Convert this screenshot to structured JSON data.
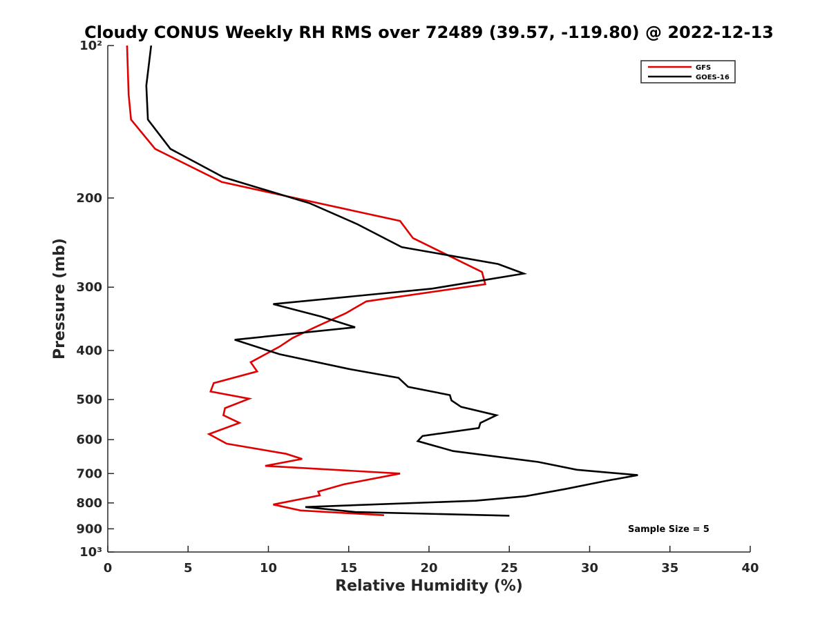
{
  "chart_data": {
    "type": "line",
    "title": "Cloudy CONUS Weekly RH RMS over 72489 (39.57, -119.80) @ 2022-12-13",
    "xlabel": "Relative Humidity (%)",
    "ylabel": "Pressure (mb)",
    "xlim": [
      0,
      40
    ],
    "ylim": [
      100,
      1000
    ],
    "y_scale": "log",
    "y_reversed": true,
    "x_ticks": [
      0,
      5,
      10,
      15,
      20,
      25,
      30,
      35,
      40
    ],
    "y_ticks": [
      100,
      200,
      300,
      400,
      500,
      600,
      700,
      800,
      900,
      1000
    ],
    "y_tick_labels": [
      "10²",
      "200",
      "300",
      "400",
      "500",
      "600",
      "700",
      "800",
      "900",
      "10³"
    ],
    "grid": false,
    "legend_position": "top-right",
    "annotation": "Sample Size = 5",
    "series": [
      {
        "name": "GFS",
        "color": "#e00000",
        "points": [
          [
            1.2,
            100
          ],
          [
            1.3,
            125
          ],
          [
            1.45,
            140
          ],
          [
            2.95,
            160
          ],
          [
            7.1,
            186
          ],
          [
            18.2,
            222
          ],
          [
            19.0,
            240
          ],
          [
            23.3,
            280
          ],
          [
            23.5,
            296
          ],
          [
            16.1,
            320
          ],
          [
            14.8,
            338
          ],
          [
            12.9,
            360
          ],
          [
            11.5,
            378
          ],
          [
            10.7,
            393
          ],
          [
            8.9,
            422
          ],
          [
            9.3,
            440
          ],
          [
            6.6,
            464
          ],
          [
            6.4,
            482
          ],
          [
            8.8,
            498
          ],
          [
            7.3,
            520
          ],
          [
            7.2,
            537
          ],
          [
            8.2,
            556
          ],
          [
            6.3,
            585
          ],
          [
            7.4,
            611
          ],
          [
            11.1,
            640
          ],
          [
            12.1,
            655
          ],
          [
            9.8,
            676
          ],
          [
            18.2,
            700
          ],
          [
            14.7,
            735
          ],
          [
            13.1,
            760
          ],
          [
            13.2,
            773
          ],
          [
            10.3,
            806
          ],
          [
            12.0,
            828
          ],
          [
            17.2,
            846
          ]
        ]
      },
      {
        "name": "GOES-16",
        "color": "#000000",
        "points": [
          [
            2.7,
            100
          ],
          [
            2.4,
            120
          ],
          [
            2.5,
            140
          ],
          [
            3.9,
            160
          ],
          [
            7.2,
            182
          ],
          [
            12.6,
            205
          ],
          [
            15.5,
            225
          ],
          [
            18.3,
            250
          ],
          [
            24.3,
            270
          ],
          [
            25.9,
            282
          ],
          [
            20.2,
            302
          ],
          [
            10.3,
            324
          ],
          [
            13.3,
            343
          ],
          [
            15.4,
            360
          ],
          [
            7.9,
            381
          ],
          [
            10.7,
            407
          ],
          [
            15.0,
            435
          ],
          [
            18.1,
            453
          ],
          [
            18.7,
            472
          ],
          [
            21.3,
            490
          ],
          [
            21.4,
            502
          ],
          [
            22.0,
            517
          ],
          [
            24.2,
            537
          ],
          [
            23.2,
            556
          ],
          [
            23.1,
            569
          ],
          [
            19.6,
            590
          ],
          [
            19.3,
            604
          ],
          [
            21.5,
            632
          ],
          [
            26.8,
            664
          ],
          [
            29.2,
            688
          ],
          [
            33.0,
            705
          ],
          [
            31.0,
            724
          ],
          [
            28.5,
            751
          ],
          [
            26.0,
            776
          ],
          [
            22.9,
            792
          ],
          [
            12.3,
            815
          ],
          [
            15.4,
            834
          ],
          [
            25.0,
            848
          ]
        ]
      }
    ]
  }
}
